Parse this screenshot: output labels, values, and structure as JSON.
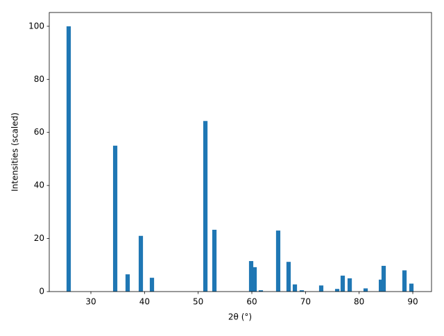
{
  "chart_data": {
    "type": "bar",
    "x_label": "2θ (°)",
    "y_label": "Intensities (scaled)",
    "color": "#1f77b4",
    "x": [
      25.86,
      34.53,
      36.85,
      39.31,
      41.38,
      51.34,
      53.02,
      59.87,
      60.52,
      61.68,
      64.91,
      66.85,
      68.02,
      69.31,
      72.93,
      75.91,
      76.94,
      78.24,
      81.21,
      84.06,
      84.57,
      88.45,
      89.74
    ],
    "values": [
      100,
      55,
      6.5,
      21,
      5.2,
      64.3,
      23.3,
      11.5,
      9.2,
      0.5,
      23,
      11.2,
      2.7,
      0.5,
      2.3,
      1,
      6,
      5,
      1.2,
      4.5,
      9.7,
      8,
      3
    ],
    "xlim": [
      22.24,
      93.49
    ],
    "ylim": [
      0,
      105.2
    ],
    "xticks": [
      30,
      40,
      50,
      60,
      70,
      80,
      90
    ],
    "yticks": [
      0,
      20,
      40,
      60,
      80,
      100
    ],
    "grid": false
  }
}
